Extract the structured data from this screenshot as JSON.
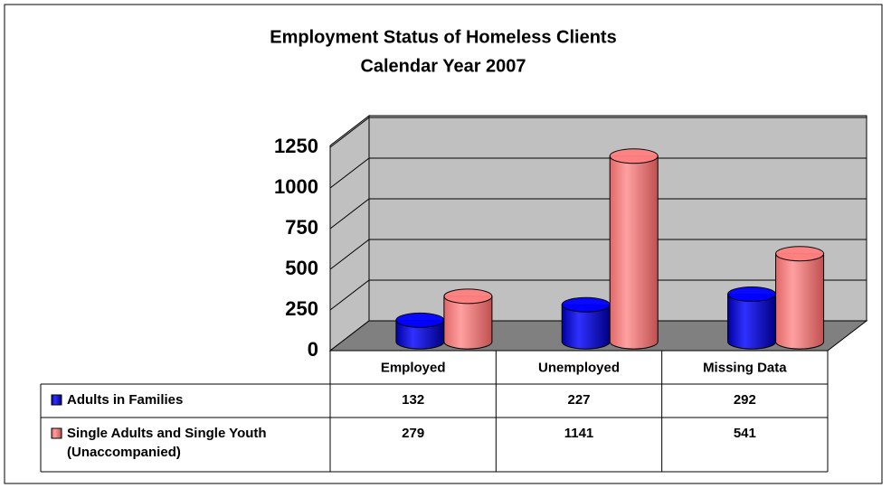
{
  "chart_data": {
    "type": "bar3d",
    "title": "Employment Status of Homeless Clients",
    "subtitle": "Calendar Year 2007",
    "categories": [
      "Employed",
      "Unemployed",
      "Missing Data"
    ],
    "series": [
      {
        "name": "Adults in Families",
        "color": "#0000ff",
        "values": [
          132,
          227,
          292
        ]
      },
      {
        "name": "Single Adults and Single Youth (Unaccompanied)",
        "color": "#ff8080",
        "values": [
          279,
          1141,
          541
        ]
      }
    ],
    "ylim": [
      0,
      1250
    ],
    "yticks": [
      0,
      250,
      500,
      750,
      1000,
      1250
    ],
    "grid": true,
    "data_table": true
  }
}
